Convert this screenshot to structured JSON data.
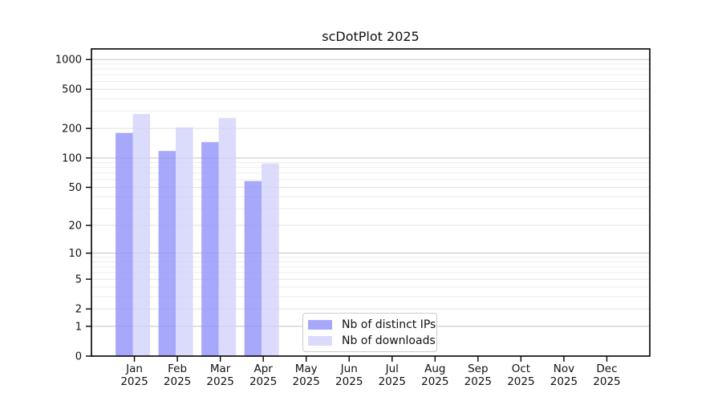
{
  "chart_data": {
    "type": "bar",
    "title": "scDotPlot 2025",
    "categories": [
      "Jan",
      "Feb",
      "Mar",
      "Apr",
      "May",
      "Jun",
      "Jul",
      "Aug",
      "Sep",
      "Oct",
      "Nov",
      "Dec"
    ],
    "year_label": "2025",
    "series": [
      {
        "name": "Nb of distinct IPs",
        "color": "#9292fa",
        "opacity": 0.8,
        "effective_color": "#a8a8fa",
        "values": [
          180,
          118,
          145,
          58,
          null,
          null,
          null,
          null,
          null,
          null,
          null,
          null
        ]
      },
      {
        "name": "Nb of downloads",
        "color": "#d2d2fa",
        "opacity": 0.8,
        "effective_color": "#dbdbfa",
        "values": [
          280,
          205,
          255,
          88,
          null,
          null,
          null,
          null,
          null,
          null,
          null,
          null
        ]
      }
    ],
    "xlabel": "",
    "ylabel": "",
    "scale": "symlog-log1p",
    "ylim": [
      0,
      1280
    ],
    "y_ticks": [
      0,
      1,
      2,
      5,
      10,
      20,
      50,
      100,
      200,
      500,
      1000
    ],
    "y_minor_ticks": [
      3,
      4,
      6,
      7,
      8,
      9,
      30,
      40,
      60,
      70,
      80,
      90,
      300,
      400,
      600,
      700,
      800,
      900
    ],
    "grid": true,
    "legend_position": "inside-bottom-center",
    "colors": {
      "decade_gridline": "#c3c3c3",
      "labeled_gridline": "#e1e1e1",
      "minor_gridline": "#ededed",
      "axis": "#000000",
      "text": "#111111",
      "legend_border": "#cccccc",
      "background": "#ffffff"
    }
  }
}
